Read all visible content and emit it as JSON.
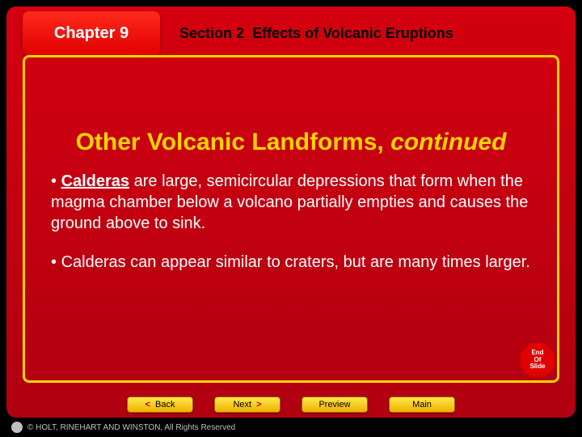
{
  "colors": {
    "slide_bg_top": "#d4000f",
    "slide_bg_bottom": "#b00010",
    "panel_border": "#ffd400",
    "title_color": "#ffd400",
    "body_text": "#ffffff",
    "chapter_box_top": "#ff2a1a",
    "chapter_box_bottom": "#e00000",
    "nav_btn_top": "#ffe84a",
    "nav_btn_bottom": "#f0b000",
    "nav_arrow": "#b00010",
    "footer_bg": "#000000",
    "footer_text": "#bfbfbf"
  },
  "header": {
    "chapter_label": "Chapter 9",
    "section_prefix": "Section 2",
    "section_title": "Effects of Volcanic Eruptions"
  },
  "slide": {
    "title_main": "Other Volcanic Landforms, ",
    "title_italic": "continued",
    "bullets": [
      {
        "term": "Calderas",
        "rest": " are large, semicircular depressions that form when the magma chamber below a volcano partially empties and causes the ground above to sink."
      },
      {
        "term": "",
        "rest": "Calderas can appear similar to craters, but are many times larger."
      }
    ],
    "end_badge": {
      "line1": "End",
      "line2": "Of",
      "line3": "Slide"
    }
  },
  "nav": {
    "back": "Back",
    "next": "Next",
    "preview": "Preview",
    "main": "Main"
  },
  "footer": {
    "copyright": "© HOLT, RINEHART AND WINSTON, All Rights Reserved"
  }
}
